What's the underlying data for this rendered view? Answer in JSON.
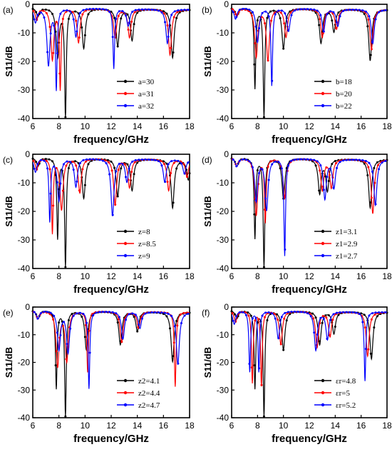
{
  "colors": {
    "series1": "#000000",
    "series2": "#ff0000",
    "series3": "#0000ff"
  },
  "chart_data": [
    {
      "type": "line",
      "panel_label": "(a)",
      "xlabel": "frequency/GHz",
      "ylabel": "S11/dB",
      "xlim": [
        6,
        18
      ],
      "ylim": [
        -40,
        0
      ],
      "xticks": [
        "6",
        "8",
        "10",
        "12",
        "14",
        "16",
        "18"
      ],
      "yticks": [
        "0",
        "-10",
        "-20",
        "-30",
        "-40"
      ],
      "legend_position": "bottom-right",
      "series": [
        {
          "name": "a=30",
          "dips": [
            [
              6.4,
              -3
            ],
            [
              7.9,
              -17
            ],
            [
              8.5,
              -38
            ],
            [
              9.9,
              -14
            ],
            [
              12.5,
              -13
            ],
            [
              13.6,
              -11
            ],
            [
              16.7,
              -17
            ]
          ]
        },
        {
          "name": "a=31",
          "dips": [
            [
              6.3,
              -4
            ],
            [
              7.5,
              -18
            ],
            [
              8.1,
              -28
            ],
            [
              9.5,
              -12
            ],
            [
              12.3,
              -10
            ],
            [
              13.4,
              -10
            ],
            [
              16.5,
              -16
            ]
          ]
        },
        {
          "name": "a=32",
          "dips": [
            [
              6.2,
              -5
            ],
            [
              7.2,
              -20
            ],
            [
              7.8,
              -28
            ],
            [
              9.3,
              -10
            ],
            [
              12.2,
              -21
            ],
            [
              13.3,
              -6
            ],
            [
              16.3,
              -12
            ]
          ]
        }
      ]
    },
    {
      "type": "line",
      "panel_label": "(b)",
      "xlabel": "frequency/GHz",
      "ylabel": "S11/dB",
      "xlim": [
        6,
        18
      ],
      "ylim": [
        -40,
        0
      ],
      "xticks": [
        "6",
        "8",
        "10",
        "12",
        "14",
        "16",
        "18"
      ],
      "yticks": [
        "0",
        "-10",
        "-20",
        "-30",
        "-40"
      ],
      "legend_position": "bottom-right",
      "series": [
        {
          "name": "b=18",
          "dips": [
            [
              6.4,
              -3
            ],
            [
              7.8,
              -28
            ],
            [
              8.5,
              -38
            ],
            [
              10.0,
              -14
            ],
            [
              12.9,
              -12
            ],
            [
              13.9,
              -8
            ],
            [
              16.7,
              -18
            ]
          ]
        },
        {
          "name": "b=20",
          "dips": [
            [
              6.4,
              -3
            ],
            [
              7.9,
              -17
            ],
            [
              8.8,
              -18
            ],
            [
              10.2,
              -10
            ],
            [
              13.0,
              -10
            ],
            [
              14.1,
              -7
            ],
            [
              16.8,
              -14
            ]
          ]
        },
        {
          "name": "b=22",
          "dips": [
            [
              6.3,
              -4
            ],
            [
              8.0,
              -12
            ],
            [
              9.1,
              -27
            ],
            [
              10.4,
              -8
            ],
            [
              13.1,
              -8
            ],
            [
              14.2,
              -6
            ],
            [
              16.9,
              -12
            ]
          ]
        }
      ]
    },
    {
      "type": "line",
      "panel_label": "(c)",
      "xlabel": "frequency/GHz",
      "ylabel": "S11/dB",
      "xlim": [
        6,
        18
      ],
      "ylim": [
        -40,
        0
      ],
      "xticks": [
        "6",
        "8",
        "10",
        "12",
        "14",
        "16",
        "18"
      ],
      "yticks": [
        "0",
        "-10",
        "-20",
        "-30",
        "-40"
      ],
      "legend_position": "bottom-right",
      "series": [
        {
          "name": "z=8",
          "dips": [
            [
              6.4,
              -3
            ],
            [
              7.9,
              -28
            ],
            [
              8.5,
              -38
            ],
            [
              9.9,
              -14
            ],
            [
              12.5,
              -13
            ],
            [
              13.6,
              -11
            ],
            [
              16.7,
              -17
            ],
            [
              17.9,
              -7
            ]
          ]
        },
        {
          "name": "z=8.5",
          "dips": [
            [
              6.3,
              -4
            ],
            [
              7.5,
              -26
            ],
            [
              8.2,
              -18
            ],
            [
              9.6,
              -12
            ],
            [
              12.3,
              -16
            ],
            [
              13.4,
              -10
            ],
            [
              16.4,
              -11
            ],
            [
              17.8,
              -6
            ]
          ]
        },
        {
          "name": "z=9",
          "dips": [
            [
              6.2,
              -5
            ],
            [
              7.3,
              -22
            ],
            [
              8.0,
              -15
            ],
            [
              9.3,
              -10
            ],
            [
              12.1,
              -20
            ],
            [
              13.2,
              -8
            ],
            [
              16.1,
              -8
            ],
            [
              17.6,
              -5
            ]
          ]
        }
      ]
    },
    {
      "type": "line",
      "panel_label": "(d)",
      "xlabel": "frequency/GHz",
      "ylabel": "S11/dB",
      "xlim": [
        6,
        18
      ],
      "ylim": [
        -40,
        0
      ],
      "xticks": [
        "6",
        "8",
        "10",
        "12",
        "14",
        "16",
        "18"
      ],
      "yticks": [
        "0",
        "-10",
        "-20",
        "-30",
        "-40"
      ],
      "legend_position": "bottom-right",
      "series": [
        {
          "name": "z1=3.1",
          "dips": [
            [
              6.4,
              -3
            ],
            [
              7.8,
              -28
            ],
            [
              8.5,
              -38
            ],
            [
              10.0,
              -14
            ],
            [
              12.8,
              -12
            ],
            [
              13.4,
              -11
            ],
            [
              16.7,
              -17
            ]
          ]
        },
        {
          "name": "z1=2.9",
          "dips": [
            [
              6.4,
              -3
            ],
            [
              7.9,
              -20
            ],
            [
              8.6,
              -22
            ],
            [
              10.1,
              -14
            ],
            [
              13.0,
              -11
            ],
            [
              13.7,
              -10
            ],
            [
              16.9,
              -19
            ]
          ]
        },
        {
          "name": "z1=2.7",
          "dips": [
            [
              6.4,
              -3
            ],
            [
              7.9,
              -15
            ],
            [
              8.7,
              -18
            ],
            [
              10.1,
              -34
            ],
            [
              13.2,
              -14
            ],
            [
              13.9,
              -10
            ],
            [
              17.1,
              -16
            ]
          ]
        }
      ]
    },
    {
      "type": "line",
      "panel_label": "(e)",
      "xlabel": "frequency/GHz",
      "ylabel": "S11/dB",
      "xlim": [
        6,
        18
      ],
      "ylim": [
        -40,
        0
      ],
      "xticks": [
        "6",
        "8",
        "10",
        "12",
        "14",
        "16",
        "18"
      ],
      "yticks": [
        "0",
        "-10",
        "-20",
        "-30",
        "-40"
      ],
      "legend_position": "bottom-right",
      "series": [
        {
          "name": "z2=4.1",
          "dips": [
            [
              6.4,
              -3
            ],
            [
              7.8,
              -28
            ],
            [
              8.5,
              -38
            ],
            [
              10.1,
              -14
            ],
            [
              12.7,
              -12
            ],
            [
              14.0,
              -7
            ],
            [
              16.7,
              -18
            ]
          ]
        },
        {
          "name": "z2=4.4",
          "dips": [
            [
              6.4,
              -3
            ],
            [
              7.9,
              -20
            ],
            [
              8.6,
              -18
            ],
            [
              10.2,
              -22
            ],
            [
              12.8,
              -11
            ],
            [
              14.1,
              -6
            ],
            [
              16.9,
              -27
            ]
          ]
        },
        {
          "name": "z2=4.7",
          "dips": [
            [
              6.4,
              -3
            ],
            [
              8.0,
              -14
            ],
            [
              8.7,
              -15
            ],
            [
              10.3,
              -28
            ],
            [
              12.9,
              -10
            ],
            [
              14.2,
              -6
            ],
            [
              17.1,
              -19
            ]
          ]
        }
      ]
    },
    {
      "type": "line",
      "panel_label": "(f)",
      "xlabel": "frequency/GHz",
      "ylabel": "S11/dB",
      "xlim": [
        6,
        18
      ],
      "ylim": [
        -40,
        0
      ],
      "xticks": [
        "6",
        "8",
        "10",
        "12",
        "14",
        "16",
        "18"
      ],
      "yticks": [
        "0",
        "-10",
        "-20",
        "-30",
        "-40"
      ],
      "legend_position": "bottom-right",
      "series": [
        {
          "name": "εr=4.8",
          "dips": [
            [
              6.4,
              -3
            ],
            [
              7.8,
              -28
            ],
            [
              8.5,
              -38
            ],
            [
              10.0,
              -14
            ],
            [
              12.8,
              -12
            ],
            [
              13.9,
              -8
            ],
            [
              16.8,
              -17
            ]
          ]
        },
        {
          "name": "εr=5",
          "dips": [
            [
              6.3,
              -4
            ],
            [
              7.6,
              -26
            ],
            [
              8.3,
              -27
            ],
            [
              9.8,
              -12
            ],
            [
              12.6,
              -13
            ],
            [
              13.6,
              -9
            ],
            [
              16.5,
              -16
            ]
          ]
        },
        {
          "name": "εr=5.2",
          "dips": [
            [
              6.2,
              -5
            ],
            [
              7.4,
              -22
            ],
            [
              8.1,
              -22
            ],
            [
              9.6,
              -10
            ],
            [
              12.5,
              -14
            ],
            [
              13.4,
              -10
            ],
            [
              16.3,
              -25
            ]
          ]
        }
      ]
    }
  ]
}
